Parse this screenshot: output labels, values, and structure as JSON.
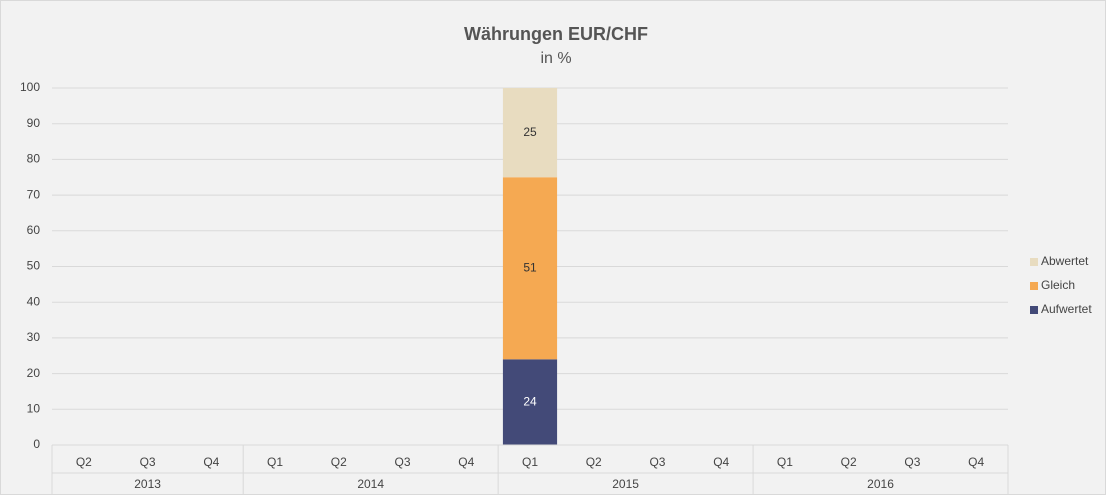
{
  "chart_data": {
    "type": "stacked_bar",
    "title": "Währungen EUR/CHF",
    "subtitle": "in %",
    "categories": [
      "Q2",
      "Q3",
      "Q4",
      "Q1",
      "Q2",
      "Q3",
      "Q4",
      "Q1",
      "Q2",
      "Q3",
      "Q4",
      "Q1",
      "Q2",
      "Q3",
      "Q4"
    ],
    "groups": [
      {
        "label": "2013",
        "count": 3
      },
      {
        "label": "2014",
        "count": 4
      },
      {
        "label": "2015",
        "count": 4
      },
      {
        "label": "2016",
        "count": 4
      }
    ],
    "series": [
      {
        "name": "Aufwertet",
        "color": "#434a78",
        "values": [
          null,
          null,
          null,
          null,
          null,
          null,
          null,
          24,
          null,
          null,
          null,
          null,
          null,
          null,
          null
        ]
      },
      {
        "name": "Gleich",
        "color": "#f5a952",
        "values": [
          null,
          null,
          null,
          null,
          null,
          null,
          null,
          51,
          null,
          null,
          null,
          null,
          null,
          null,
          null
        ]
      },
      {
        "name": "Abwertet",
        "color": "#e8dcc0",
        "values": [
          null,
          null,
          null,
          null,
          null,
          null,
          null,
          25,
          null,
          null,
          null,
          null,
          null,
          null,
          null
        ]
      }
    ],
    "ylim": [
      0,
      100
    ],
    "yticks": [
      0,
      10,
      20,
      30,
      40,
      50,
      60,
      70,
      80,
      90,
      100
    ],
    "grid": true,
    "legend": "right"
  }
}
